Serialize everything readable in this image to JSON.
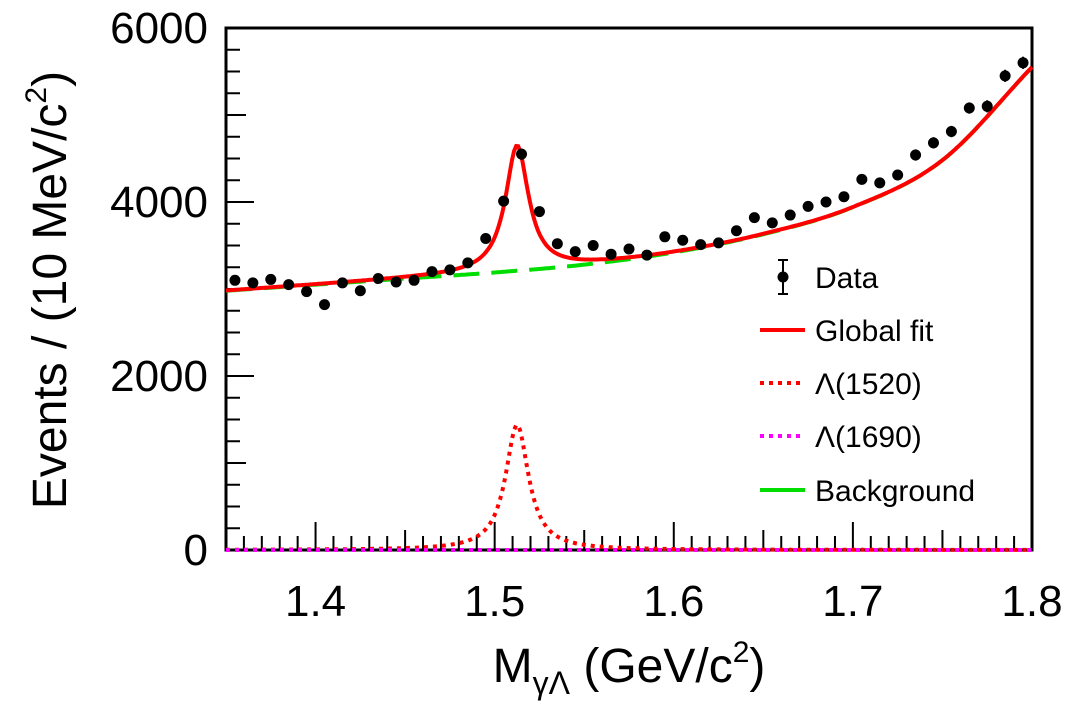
{
  "chart_data": {
    "type": "scatter",
    "xlabel": "M",
    "xlabel_sub": "γΛ",
    "xlabel_unit": "(GeV/c",
    "xlabel_unit_sup": "2",
    "xlabel_unit_close": ")",
    "ylabel": "Events / (10 MeV/c",
    "ylabel_sup": "2",
    "ylabel_close": ")",
    "xlim": [
      1.35,
      1.8
    ],
    "ylim": [
      0,
      6000
    ],
    "x_ticks": [
      "1.4",
      "1.5",
      "1.6",
      "1.7",
      "1.8"
    ],
    "y_ticks": [
      "0",
      "2000",
      "4000",
      "6000"
    ],
    "legend_position": "right",
    "legend": [
      {
        "label": "Data",
        "style": "marker",
        "color": "#000000"
      },
      {
        "label": "Global fit",
        "style": "solid",
        "color": "#ff0000"
      },
      {
        "label": "Λ(1520)",
        "style": "dotted",
        "color": "#ff0000"
      },
      {
        "label": "Λ(1690)",
        "style": "dotted",
        "color": "#ff00ff"
      },
      {
        "label": "Background",
        "style": "solid",
        "color": "#00dd00"
      }
    ],
    "data_points": {
      "x": [
        1.355,
        1.365,
        1.375,
        1.385,
        1.395,
        1.405,
        1.415,
        1.425,
        1.435,
        1.445,
        1.455,
        1.465,
        1.475,
        1.485,
        1.495,
        1.505,
        1.515,
        1.525,
        1.535,
        1.545,
        1.555,
        1.565,
        1.575,
        1.585,
        1.595,
        1.605,
        1.615,
        1.625,
        1.635,
        1.645,
        1.655,
        1.665,
        1.675,
        1.685,
        1.695,
        1.705,
        1.715,
        1.725,
        1.735,
        1.745,
        1.755,
        1.765,
        1.775,
        1.785,
        1.795
      ],
      "y": [
        3100,
        3070,
        3110,
        3050,
        2970,
        2820,
        3070,
        2980,
        3120,
        3080,
        3100,
        3200,
        3220,
        3300,
        3580,
        4010,
        4550,
        3890,
        3520,
        3430,
        3500,
        3400,
        3460,
        3390,
        3600,
        3560,
        3510,
        3530,
        3670,
        3820,
        3760,
        3850,
        3950,
        4000,
        4060,
        4260,
        4220,
        4310,
        4540,
        4680,
        4810,
        5080,
        5100,
        5450,
        5600
      ],
      "err": [
        50,
        50,
        50,
        50,
        50,
        50,
        50,
        50,
        50,
        50,
        50,
        50,
        50,
        50,
        55,
        60,
        65,
        60,
        55,
        55,
        55,
        55,
        55,
        55,
        55,
        55,
        55,
        55,
        55,
        60,
        60,
        60,
        60,
        60,
        60,
        60,
        60,
        60,
        65,
        65,
        65,
        65,
        70,
        70,
        70
      ]
    },
    "signal_peak": {
      "mass": 1.5125,
      "width": 0.0156,
      "height": 1440
    },
    "background_curve": {
      "x": [
        1.35,
        1.4,
        1.45,
        1.5,
        1.55,
        1.6,
        1.65,
        1.7,
        1.75,
        1.8
      ],
      "y": [
        2980,
        3050,
        3120,
        3190,
        3280,
        3420,
        3630,
        3940,
        4480,
        5550
      ]
    },
    "colors": {
      "data": "#000000",
      "global_fit": "#ff0000",
      "lambda1520": "#ff0000",
      "lambda1690": "#ff00ff",
      "background": "#00dd00"
    }
  }
}
